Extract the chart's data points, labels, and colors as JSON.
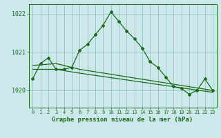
{
  "bg_color": "#cce8ea",
  "grid_color": "#88bbbb",
  "line_color": "#1a6b1a",
  "title": "Graphe pression niveau de la mer (hPa)",
  "xlim": [
    -0.5,
    23.5
  ],
  "ylim": [
    1019.55,
    1022.25
  ],
  "yticks": [
    1020,
    1021,
    1022
  ],
  "xticks": [
    0,
    1,
    2,
    3,
    4,
    5,
    6,
    7,
    8,
    9,
    10,
    11,
    12,
    13,
    14,
    15,
    16,
    17,
    18,
    19,
    20,
    21,
    22,
    23
  ],
  "series1": {
    "x": [
      0,
      1,
      2,
      3,
      4,
      5,
      6,
      7,
      8,
      9,
      10,
      11,
      12,
      13,
      14,
      15,
      16,
      17,
      18,
      19,
      20,
      21,
      22,
      23
    ],
    "y": [
      1020.3,
      1020.7,
      1020.85,
      1020.55,
      1020.55,
      1020.6,
      1021.05,
      1021.2,
      1021.45,
      1021.7,
      1022.05,
      1021.8,
      1021.55,
      1021.35,
      1021.1,
      1020.75,
      1020.6,
      1020.35,
      1020.1,
      1020.05,
      1019.9,
      1020.0,
      1020.3,
      1020.0
    ]
  },
  "series2": {
    "x": [
      0,
      3,
      6,
      23
    ],
    "y": [
      1020.65,
      1020.7,
      1020.55,
      1020.0
    ]
  },
  "series3": {
    "x": [
      0,
      3,
      6,
      23
    ],
    "y": [
      1020.55,
      1020.55,
      1020.45,
      1019.95
    ]
  }
}
